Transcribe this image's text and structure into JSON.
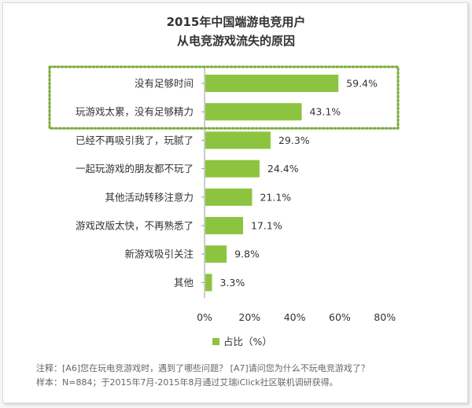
{
  "chart_data": {
    "type": "bar",
    "orientation": "horizontal",
    "title_lines": [
      "2015年中国端游电竞用户",
      "从电竞游戏流失的原因"
    ],
    "categories": [
      "没有足够时间",
      "玩游戏太累，没有足够精力",
      "已经不再吸引我了，玩腻了",
      "一起玩游戏的朋友都不玩了",
      "其他活动转移注意力",
      "游戏改版太快，不再熟悉了",
      "新游戏吸引关注",
      "其他"
    ],
    "series": [
      {
        "name": "占比（%）",
        "values": [
          59.4,
          43.1,
          29.3,
          24.4,
          21.1,
          17.1,
          9.8,
          3.3
        ]
      }
    ],
    "value_labels": [
      "59.4%",
      "43.1%",
      "29.3%",
      "24.4%",
      "21.1%",
      "17.1%",
      "9.8%",
      "3.3%"
    ],
    "xlim": [
      0,
      80
    ],
    "x_ticks": [
      "0%",
      "20%",
      "40%",
      "60%",
      "80%"
    ],
    "grid": false,
    "legend_position": "bottom",
    "highlighted_categories": [
      0,
      1
    ]
  },
  "colors": {
    "bar": "#8cc43f",
    "highlight_box": "#7cab3c",
    "axis": "#999999",
    "text": "#333333"
  },
  "notes": {
    "line1": "注释：[A6]您在玩电竞游戏时，遇到了哪些问题？ [A7]请问您为什么不玩电竞游戏了？",
    "line2": "样本：N=884；于2015年7月-2015年8月通过艾瑞iClick社区联机调研获得。"
  }
}
